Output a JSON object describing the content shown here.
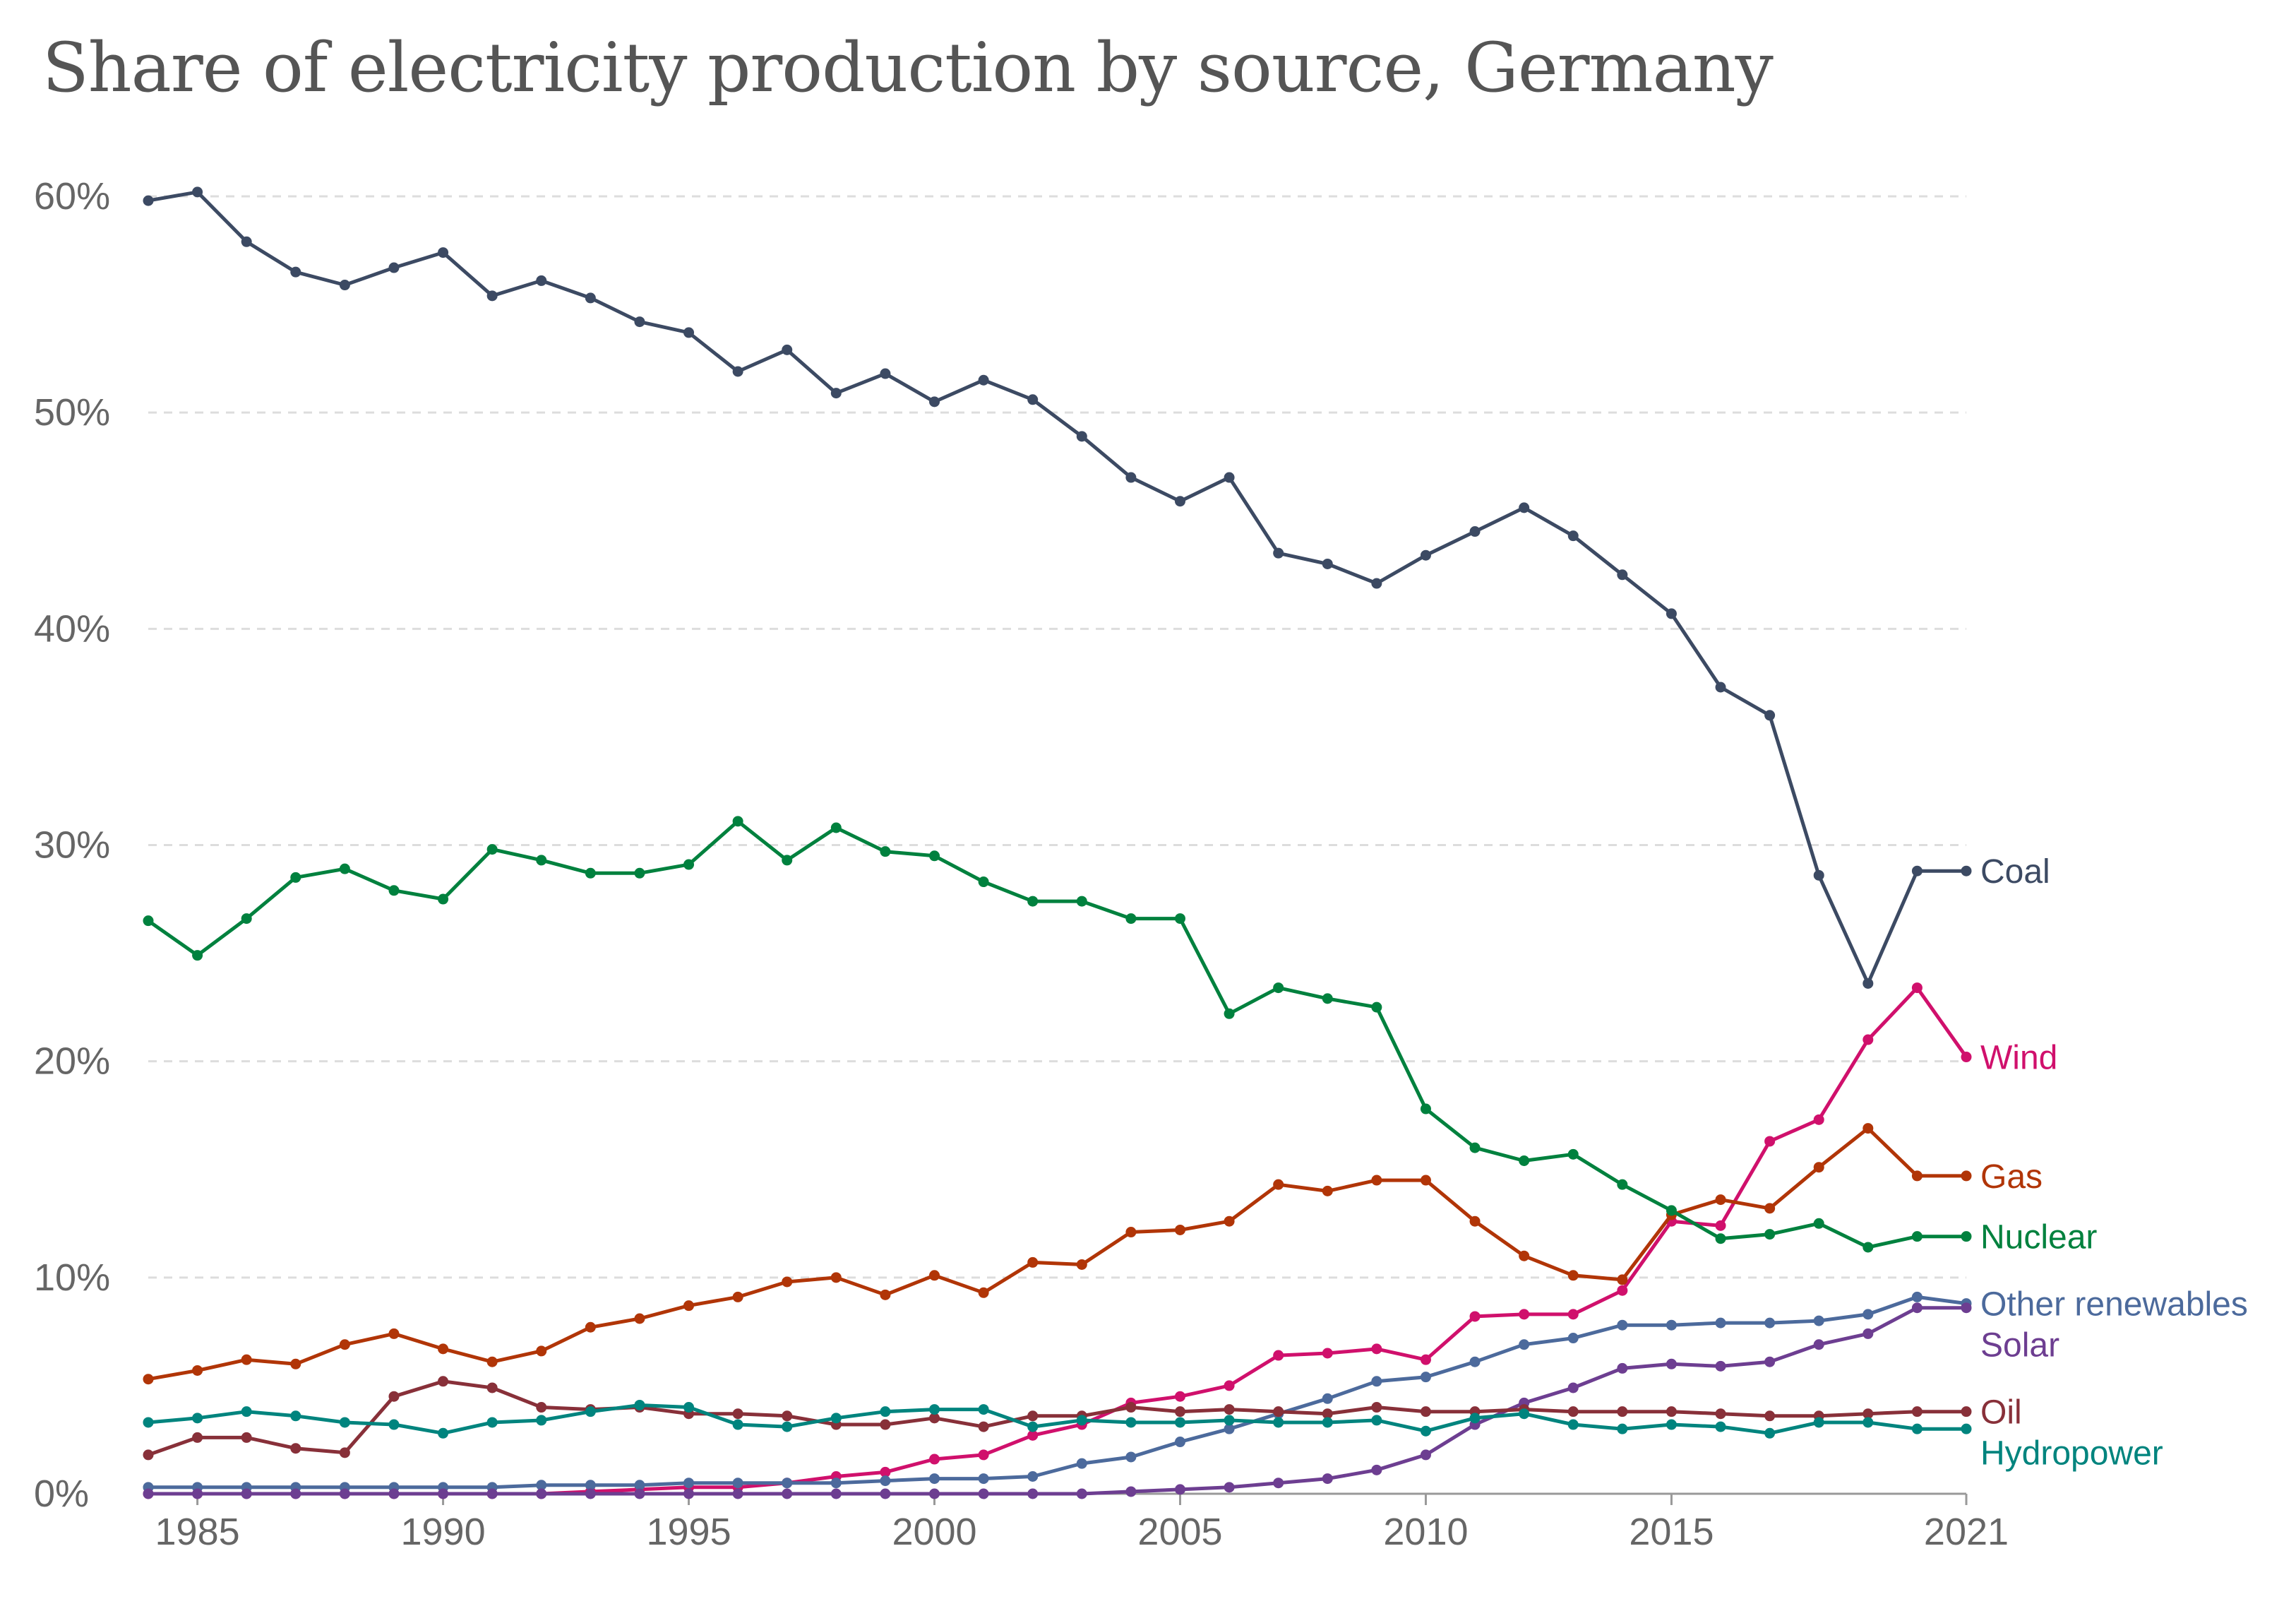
{
  "chart_data": {
    "type": "line",
    "title": "Share of electricity production by source, Germany",
    "xlabel": "",
    "ylabel": "",
    "x": [
      1984,
      1985,
      1986,
      1987,
      1988,
      1989,
      1990,
      1991,
      1992,
      1993,
      1994,
      1995,
      1996,
      1997,
      1998,
      1999,
      2000,
      2001,
      2002,
      2003,
      2004,
      2005,
      2006,
      2007,
      2008,
      2009,
      2010,
      2011,
      2012,
      2013,
      2014,
      2015,
      2016,
      2017,
      2018,
      2019,
      2020,
      2021
    ],
    "xlim": [
      1984,
      2021
    ],
    "ylim": [
      0,
      60
    ],
    "x_ticks": [
      {
        "value": 1985,
        "label": "1985"
      },
      {
        "value": 1990,
        "label": "1990"
      },
      {
        "value": 1995,
        "label": "1995"
      },
      {
        "value": 2000,
        "label": "2000"
      },
      {
        "value": 2005,
        "label": "2005"
      },
      {
        "value": 2010,
        "label": "2010"
      },
      {
        "value": 2015,
        "label": "2015"
      },
      {
        "value": 2021,
        "label": "2021"
      }
    ],
    "y_ticks": [
      {
        "value": 0,
        "label": "0%"
      },
      {
        "value": 10,
        "label": "10%"
      },
      {
        "value": 20,
        "label": "20%"
      },
      {
        "value": 30,
        "label": "30%"
      },
      {
        "value": 40,
        "label": "40%"
      },
      {
        "value": 50,
        "label": "50%"
      },
      {
        "value": 60,
        "label": "60%"
      }
    ],
    "grid": "horizontal dashed",
    "legend": "labels at line ends (right)",
    "series": [
      {
        "name": "Coal",
        "color": "#3c4a63",
        "values": [
          59.8,
          60.2,
          57.9,
          56.5,
          55.9,
          56.7,
          57.4,
          55.4,
          56.1,
          55.3,
          54.2,
          53.7,
          51.9,
          52.9,
          50.9,
          51.8,
          50.5,
          51.5,
          50.6,
          48.9,
          47.0,
          45.9,
          47.0,
          43.5,
          43.0,
          42.1,
          43.4,
          44.5,
          45.6,
          44.3,
          42.5,
          40.7,
          37.3,
          36.0,
          28.6,
          23.6,
          28.8,
          28.8
        ]
      },
      {
        "name": "Wind",
        "color": "#d0106c",
        "values": [
          0.0,
          0.0,
          0.0,
          0.0,
          0.0,
          0.0,
          0.0,
          0.0,
          0.0,
          0.1,
          0.2,
          0.3,
          0.3,
          0.5,
          0.8,
          1.0,
          1.6,
          1.8,
          2.7,
          3.2,
          4.2,
          4.5,
          5.0,
          6.4,
          6.5,
          6.7,
          6.2,
          8.2,
          8.3,
          8.3,
          9.4,
          12.6,
          12.4,
          16.3,
          17.3,
          21.0,
          23.4,
          20.2
        ]
      },
      {
        "name": "Gas",
        "color": "#b13507",
        "values": [
          5.3,
          5.7,
          6.2,
          6.0,
          6.9,
          7.4,
          6.7,
          6.1,
          6.6,
          7.7,
          8.1,
          8.7,
          9.1,
          9.8,
          10.0,
          9.2,
          10.1,
          9.3,
          10.7,
          10.6,
          12.1,
          12.2,
          12.6,
          14.3,
          14.0,
          14.5,
          14.5,
          12.6,
          11.0,
          10.1,
          9.9,
          12.9,
          13.6,
          13.2,
          15.1,
          16.9,
          14.7,
          14.7
        ]
      },
      {
        "name": "Nuclear",
        "color": "#00813e",
        "values": [
          26.5,
          24.9,
          26.6,
          28.5,
          28.9,
          27.9,
          27.5,
          29.8,
          29.3,
          28.7,
          28.7,
          29.1,
          31.1,
          29.3,
          30.8,
          29.7,
          29.5,
          28.3,
          27.4,
          27.4,
          26.6,
          26.6,
          22.2,
          23.4,
          22.9,
          22.5,
          17.8,
          16.0,
          15.4,
          15.7,
          14.3,
          13.1,
          11.8,
          12.0,
          12.5,
          11.4,
          11.9,
          11.9
        ]
      },
      {
        "name": "Other renewables",
        "color": "#4c6a9c",
        "values": [
          0.3,
          0.3,
          0.3,
          0.3,
          0.3,
          0.3,
          0.3,
          0.3,
          0.4,
          0.4,
          0.4,
          0.5,
          0.5,
          0.5,
          0.5,
          0.6,
          0.7,
          0.7,
          0.8,
          1.4,
          1.7,
          2.4,
          3.0,
          3.7,
          4.4,
          5.2,
          5.4,
          6.1,
          6.9,
          7.2,
          7.8,
          7.8,
          7.9,
          7.9,
          8.0,
          8.3,
          9.1,
          8.8
        ]
      },
      {
        "name": "Solar",
        "color": "#6d3e91",
        "values": [
          0.0,
          0.0,
          0.0,
          0.0,
          0.0,
          0.0,
          0.0,
          0.0,
          0.0,
          0.0,
          0.0,
          0.0,
          0.0,
          0.0,
          0.0,
          0.0,
          0.0,
          0.0,
          0.0,
          0.0,
          0.1,
          0.2,
          0.3,
          0.5,
          0.7,
          1.1,
          1.8,
          3.2,
          4.2,
          4.9,
          5.8,
          6.0,
          5.9,
          6.1,
          6.9,
          7.4,
          8.6,
          8.6
        ]
      },
      {
        "name": "Oil",
        "color": "#883039",
        "values": [
          1.8,
          2.6,
          2.6,
          2.1,
          1.9,
          4.5,
          5.2,
          4.9,
          4.0,
          3.9,
          4.0,
          3.7,
          3.7,
          3.6,
          3.2,
          3.2,
          3.5,
          3.1,
          3.6,
          3.6,
          4.0,
          3.8,
          3.9,
          3.8,
          3.7,
          4.0,
          3.8,
          3.8,
          3.9,
          3.8,
          3.8,
          3.8,
          3.7,
          3.6,
          3.6,
          3.7,
          3.8,
          3.8
        ]
      },
      {
        "name": "Hydropower",
        "color": "#00847e",
        "values": [
          3.3,
          3.5,
          3.8,
          3.6,
          3.3,
          3.2,
          2.8,
          3.3,
          3.4,
          3.8,
          4.1,
          4.0,
          3.2,
          3.1,
          3.5,
          3.8,
          3.9,
          3.9,
          3.1,
          3.4,
          3.3,
          3.3,
          3.4,
          3.3,
          3.3,
          3.4,
          2.9,
          3.5,
          3.7,
          3.2,
          3.0,
          3.2,
          3.1,
          2.8,
          3.3,
          3.3,
          3.0,
          3.0
        ]
      }
    ]
  }
}
